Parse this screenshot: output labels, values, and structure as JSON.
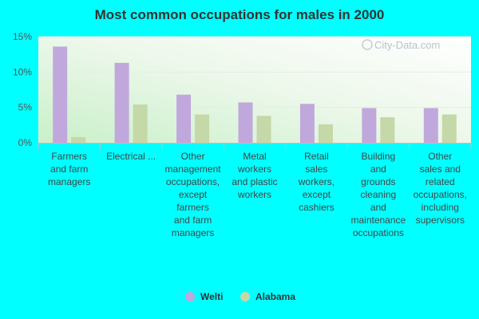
{
  "chart_data": {
    "type": "bar",
    "title": "Most common occupations for males in 2000",
    "xlabel": "",
    "ylabel": "",
    "ylim": [
      0,
      15
    ],
    "yticks": [
      0,
      5,
      10,
      15
    ],
    "ytick_labels": [
      "0%",
      "5%",
      "10%",
      "15%"
    ],
    "categories": [
      "Farmers and farm managers",
      "Electrical ...",
      "Other management occupations, except farmers and farm managers",
      "Metal workers and plastic workers",
      "Retail sales workers, except cashiers",
      "Building and grounds cleaning and maintenance occupations",
      "Other sales and related occupations, including supervisors"
    ],
    "category_lines": [
      [
        "Farmers",
        "and farm",
        "managers"
      ],
      [
        "Electrical ..."
      ],
      [
        "Other",
        "management",
        "occupations,",
        "except",
        "farmers",
        "and farm",
        "managers"
      ],
      [
        "Metal",
        "workers",
        "and plastic",
        "workers"
      ],
      [
        "Retail",
        "sales",
        "workers,",
        "except",
        "cashiers"
      ],
      [
        "Building",
        "and",
        "grounds",
        "cleaning",
        "and",
        "maintenance",
        "occupations"
      ],
      [
        "Other",
        "sales and",
        "related",
        "occupations,",
        "including",
        "supervisors"
      ]
    ],
    "series": [
      {
        "name": "Welti",
        "color": "#c0a8dc",
        "values": [
          13.6,
          11.3,
          6.8,
          5.7,
          5.5,
          4.9,
          4.9
        ]
      },
      {
        "name": "Alabama",
        "color": "#c4d8a8",
        "values": [
          0.8,
          5.4,
          4.0,
          3.8,
          2.6,
          3.6,
          4.0
        ]
      }
    ],
    "grid": true,
    "legend": "bottom-center"
  },
  "watermark": "City-Data.com"
}
